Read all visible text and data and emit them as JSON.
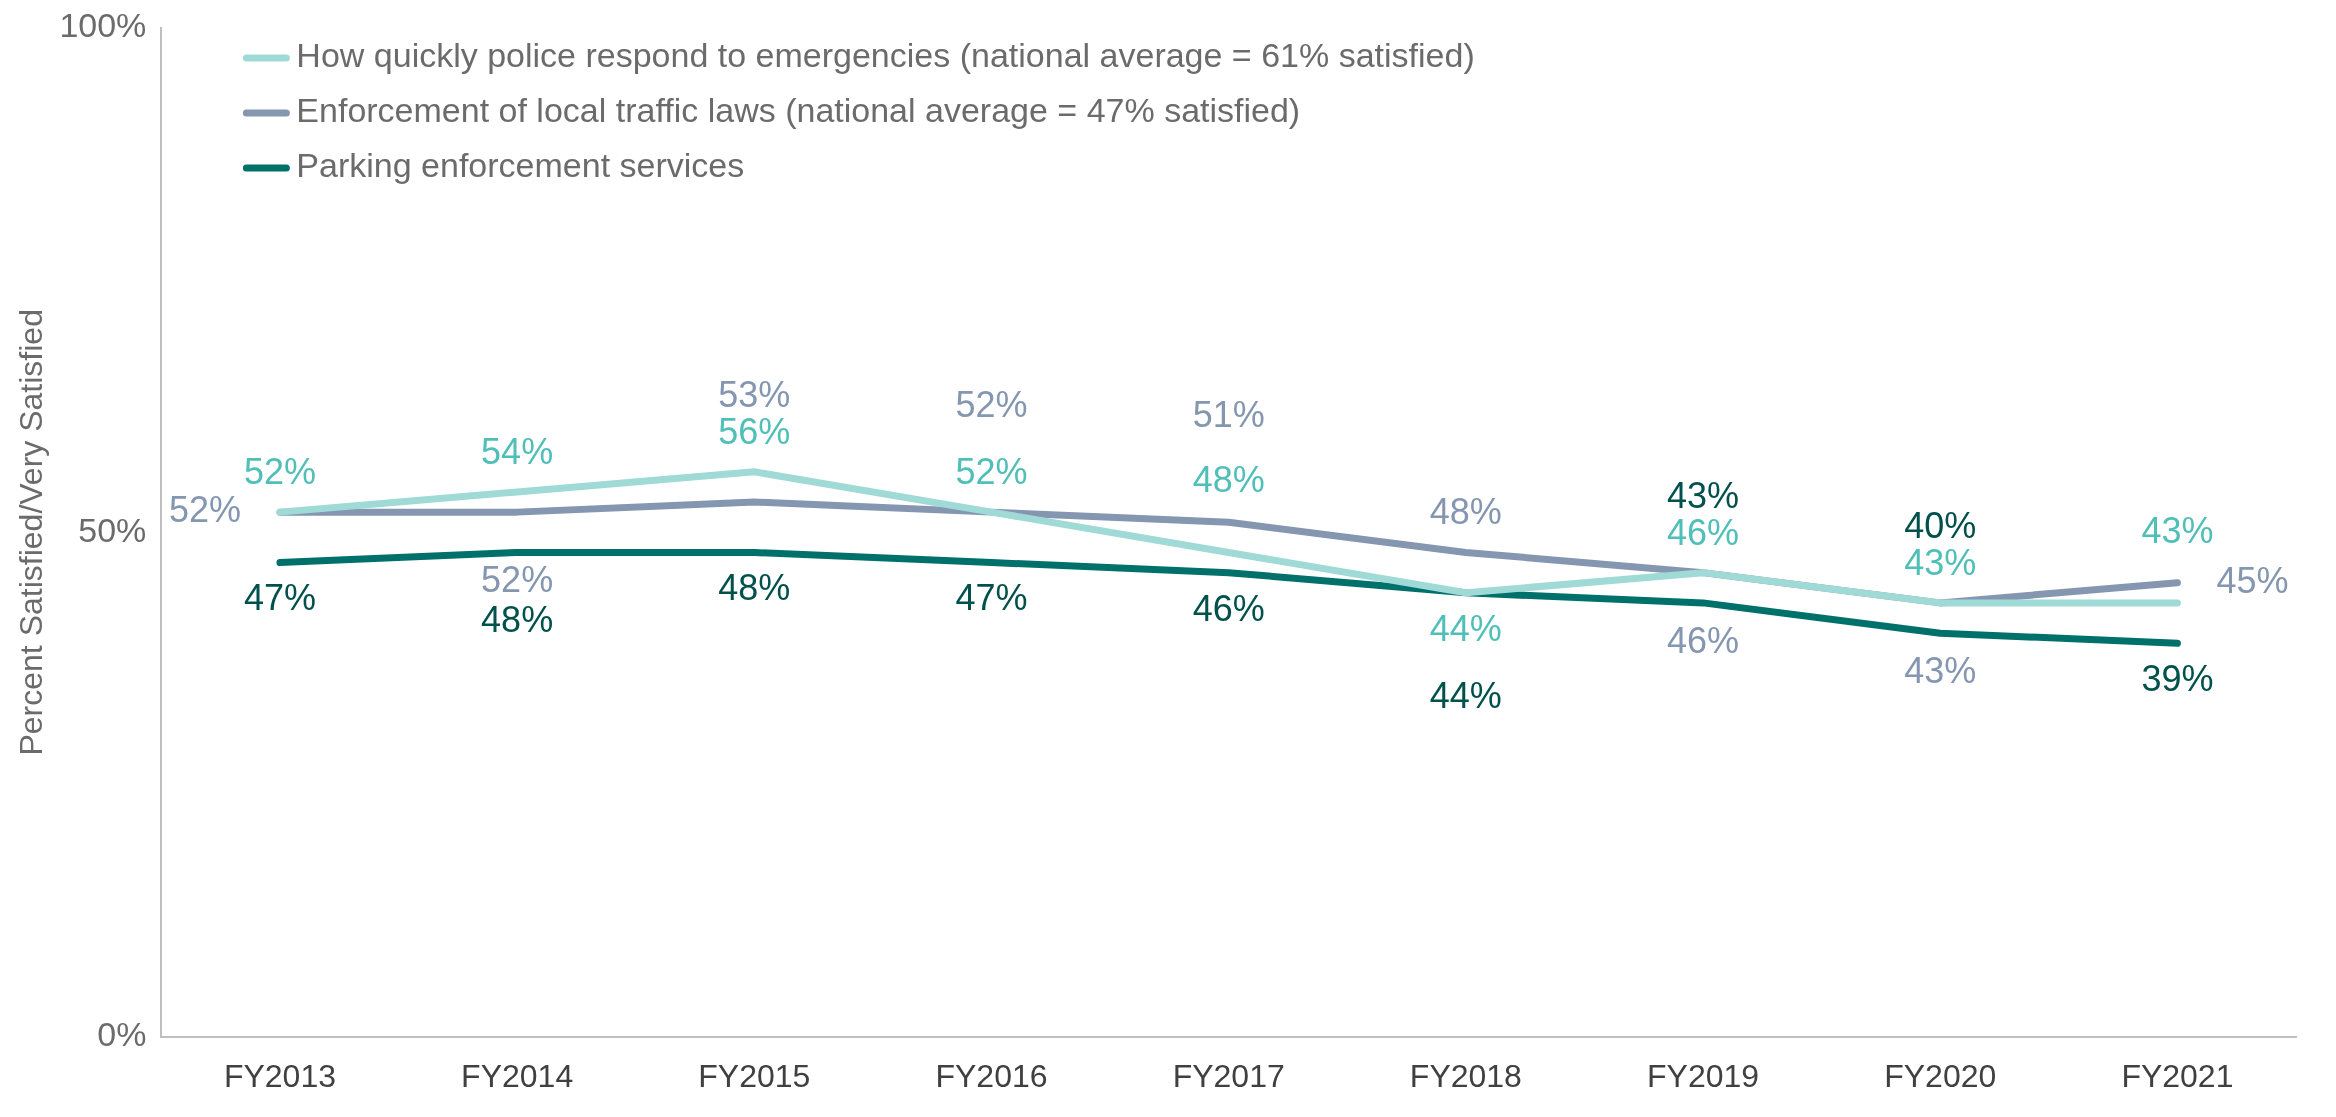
{
  "chart_data": {
    "type": "line",
    "ylabel": "Percent Satisfied/Very Satisfied",
    "categories": [
      "FY2013",
      "FY2014",
      "FY2015",
      "FY2016",
      "FY2017",
      "FY2018",
      "FY2019",
      "FY2020",
      "FY2021"
    ],
    "series": [
      {
        "name": "How quickly police respond to emergencies (national average = 61% satisfied)",
        "color": "#9fdad7",
        "values": [
          52,
          54,
          56,
          52,
          48,
          44,
          46,
          43,
          43
        ],
        "value_labels": [
          "52%",
          "54%",
          "56%",
          "52%",
          "48%",
          "44%",
          "46%",
          "43%",
          "43%"
        ]
      },
      {
        "name": "Enforcement of local traffic laws (national average = 47% satisfied)",
        "color": "#8496b0",
        "values": [
          52,
          52,
          53,
          52,
          51,
          48,
          46,
          43,
          45
        ],
        "value_labels": [
          "52%",
          "52%",
          "53%",
          "52%",
          "51%",
          "48%",
          "46%",
          "43%",
          "45%"
        ]
      },
      {
        "name": "Parking enforcement services",
        "color": "#00706a",
        "values": [
          47,
          48,
          48,
          47,
          46,
          44,
          43,
          40,
          39
        ],
        "value_labels": [
          "47%",
          "48%",
          "48%",
          "47%",
          "46%",
          "44%",
          "43%",
          "40%",
          "39%"
        ]
      }
    ],
    "ylim": [
      0,
      100
    ],
    "yticks": [
      {
        "value": 0,
        "label": "0%"
      },
      {
        "value": 50,
        "label": "50%"
      },
      {
        "value": 100,
        "label": "100%"
      }
    ],
    "grid": false,
    "legend": "top left",
    "marker": "none",
    "line_style": "solid"
  }
}
